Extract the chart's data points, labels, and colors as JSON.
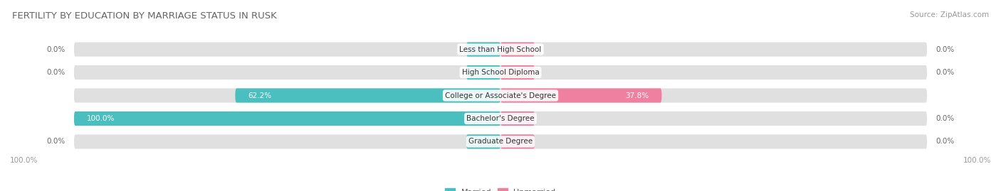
{
  "title": "FERTILITY BY EDUCATION BY MARRIAGE STATUS IN RUSK",
  "source": "Source: ZipAtlas.com",
  "categories": [
    "Less than High School",
    "High School Diploma",
    "College or Associate's Degree",
    "Bachelor's Degree",
    "Graduate Degree"
  ],
  "married": [
    0.0,
    0.0,
    62.2,
    100.0,
    0.0
  ],
  "unmarried": [
    0.0,
    0.0,
    37.8,
    0.0,
    0.0
  ],
  "married_color": "#4bbfbf",
  "unmarried_color": "#f080a0",
  "bar_bg_color": "#e0e0e0",
  "bar_height": 0.62,
  "max_val": 100.0,
  "title_fontsize": 9.5,
  "source_fontsize": 7.5,
  "label_fontsize": 7.5,
  "category_fontsize": 7.5,
  "legend_fontsize": 8,
  "axis_label_fontsize": 7.5,
  "figure_bg": "#ffffff",
  "small_married_stub": 8.0,
  "small_unmarried_stub": 8.0
}
